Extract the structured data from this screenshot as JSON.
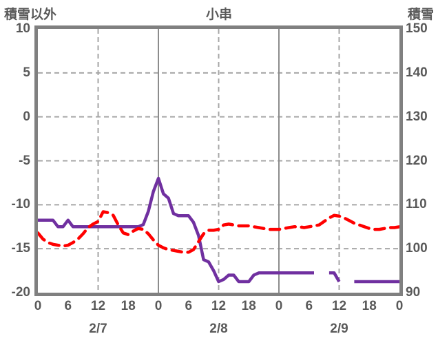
{
  "chart": {
    "title": "小串",
    "left_axis_title": "積雪以外",
    "right_axis_title": "積雪"
  },
  "chart_data": {
    "type": "line",
    "title": "小串",
    "x_unit": "hours over 3 days",
    "x_hours": "0 to 72, hourly",
    "left_axis": {
      "title": "積雪以外",
      "max": 10,
      "min": -20,
      "ticks": [
        "10",
        "5",
        "0",
        "-5",
        "-10",
        "-15",
        "-20"
      ]
    },
    "right_axis": {
      "title": "積雪",
      "max": 150,
      "min": 90,
      "ticks": [
        "150",
        "140",
        "130",
        "120",
        "110",
        "100",
        "90"
      ]
    },
    "x_axis": {
      "hour_labels": [
        "0",
        "6",
        "12",
        "18",
        "0",
        "6",
        "12",
        "18",
        "0",
        "6",
        "12",
        "18",
        "0"
      ],
      "date_labels": [
        "2/7",
        "2/8",
        "2/9"
      ]
    },
    "gridlines": {
      "horizontal_left_values": [
        5,
        0,
        -5,
        -10,
        -15
      ],
      "vertical": [
        {
          "hour": 12,
          "style": "dashed"
        },
        {
          "hour": 24,
          "style": "solid"
        },
        {
          "hour": 36,
          "style": "dashed"
        },
        {
          "hour": 48,
          "style": "solid"
        },
        {
          "hour": 60,
          "style": "dashed"
        }
      ]
    },
    "legend": "none",
    "series": [
      {
        "name": "積雪",
        "id": "snow-depth",
        "axis": "right",
        "style": "solid",
        "color": "#7030A0",
        "values": [
          106.5,
          106.5,
          106.5,
          106.5,
          105,
          105,
          106.5,
          105,
          105,
          105,
          105,
          105,
          105,
          105,
          105,
          105,
          105,
          105,
          105,
          105,
          105,
          105.5,
          108.5,
          113,
          116,
          112.5,
          111.5,
          108,
          107.5,
          107.5,
          107.5,
          106,
          103,
          97.5,
          97,
          95,
          92.5,
          93,
          94,
          94,
          92.5,
          92.5,
          92.5,
          94,
          94.5,
          94.5,
          94.5,
          94.5,
          94.5,
          94.5,
          94.5,
          94.5,
          94.5,
          94.5,
          94.5,
          94.5,
          null,
          null,
          94.5,
          94.5,
          92.5,
          null,
          null,
          92.5,
          92.5,
          92.5,
          92.5,
          92.5,
          92.5,
          92.5,
          92.5,
          92.5,
          92.5
        ]
      },
      {
        "name": "積雪以外",
        "id": "non-snow",
        "axis": "left",
        "style": "dashed",
        "color": "#FF0000",
        "values": [
          -13.2,
          -13.9,
          -14.3,
          -14.5,
          -14.6,
          -14.7,
          -14.6,
          -14.3,
          -13.9,
          -13.3,
          -12.6,
          -12.2,
          -11.9,
          -10.8,
          -10.9,
          -11.2,
          -12.3,
          -13.2,
          -13.4,
          -13.0,
          -12.7,
          -12.8,
          -13.3,
          -14.0,
          -14.6,
          -14.9,
          -15.1,
          -15.2,
          -15.3,
          -15.4,
          -15.4,
          -15.1,
          -14.2,
          -13.3,
          -12.9,
          -12.9,
          -12.8,
          -12.3,
          -12.2,
          -12.3,
          -12.4,
          -12.4,
          -12.4,
          -12.5,
          -12.6,
          -12.7,
          -12.8,
          -12.8,
          -12.8,
          -12.7,
          -12.6,
          -12.5,
          -12.5,
          -12.6,
          -12.5,
          -12.4,
          -12.3,
          -11.9,
          -11.5,
          -11.2,
          -11.3,
          -11.5,
          -11.8,
          -12.1,
          -12.3,
          -12.5,
          -12.7,
          -12.8,
          -12.8,
          -12.7,
          -12.6,
          -12.6,
          -12.5
        ]
      }
    ],
    "colors": {
      "snow_line": "#7030A0",
      "non_snow_line": "#FF0000",
      "grid": "#A6A6A6",
      "solid_grid": "#8C8C8C",
      "frame": "#808080",
      "label_text": "#595959"
    }
  }
}
